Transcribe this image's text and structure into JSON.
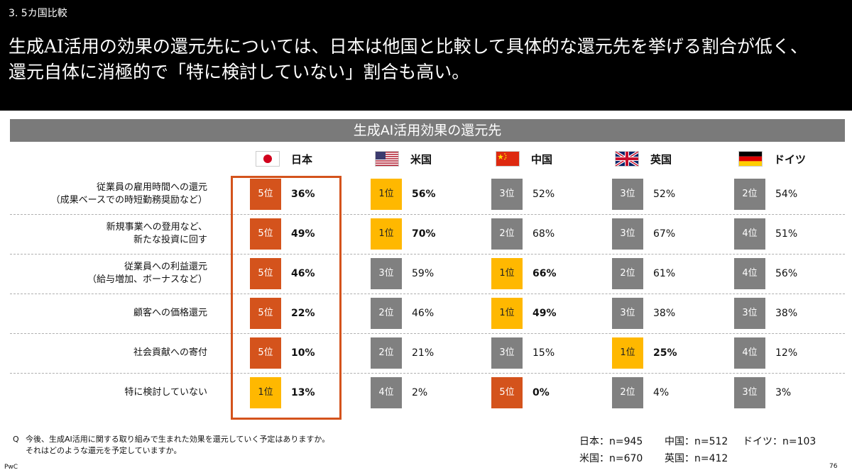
{
  "header": {
    "section": "3. 5カ国比較",
    "headline_line1": "生成AI活用の効果の還元先については、日本は他国と比較して具体的な還元先を挙げる割合が低く、",
    "headline_line2": "還元自体に消極的で「特に検討していない」割合も高い。"
  },
  "chart_data": {
    "type": "table",
    "title": "生成AI活用効果の還元先",
    "countries": [
      {
        "name": "日本",
        "flag": "japan-flag-icon"
      },
      {
        "name": "米国",
        "flag": "usa-flag-icon"
      },
      {
        "name": "中国",
        "flag": "china-flag-icon"
      },
      {
        "name": "英国",
        "flag": "uk-flag-icon"
      },
      {
        "name": "ドイツ",
        "flag": "germany-flag-icon"
      }
    ],
    "categories": [
      [
        "従業員の雇用時間への還元",
        "（成果ベースでの時短勤務奨励など）"
      ],
      [
        "新規事業への登用など、",
        "新たな投資に回す"
      ],
      [
        "従業員への利益還元",
        "（給与増加、ボーナスなど）"
      ],
      [
        "顧客への価格還元"
      ],
      [
        "社会貢献への寄付"
      ],
      [
        "特に検討していない"
      ]
    ],
    "series": [
      {
        "name": "日本",
        "ranks": [
          "5位",
          "5位",
          "5位",
          "5位",
          "5位",
          "1位"
        ],
        "values": [
          36,
          49,
          46,
          22,
          10,
          13
        ]
      },
      {
        "name": "米国",
        "ranks": [
          "1位",
          "1位",
          "3位",
          "2位",
          "2位",
          "4位"
        ],
        "values": [
          56,
          70,
          59,
          46,
          21,
          2
        ]
      },
      {
        "name": "中国",
        "ranks": [
          "3位",
          "2位",
          "1位",
          "1位",
          "3位",
          "5位"
        ],
        "values": [
          52,
          68,
          66,
          49,
          15,
          0
        ]
      },
      {
        "name": "英国",
        "ranks": [
          "3位",
          "3位",
          "2位",
          "3位",
          "1位",
          "2位"
        ],
        "values": [
          52,
          67,
          61,
          38,
          25,
          4
        ]
      },
      {
        "name": "ドイツ",
        "ranks": [
          "2位",
          "4位",
          "4位",
          "3位",
          "4位",
          "3位"
        ],
        "values": [
          54,
          51,
          56,
          38,
          12,
          3
        ]
      }
    ],
    "unit": "%",
    "colors": {
      "rank1": "#ffb800",
      "rank5": "#d4531c",
      "other": "#808080",
      "highlight_border": "#d4531c"
    }
  },
  "footer": {
    "q_mark": "Q",
    "question_line1": "今後、生成AI活用に関する取り組みで生まれた効果を還元していく予定はありますか。",
    "question_line2": "それはどのような還元を予定していますか。",
    "samples": [
      {
        "label": "日本：n=945"
      },
      {
        "label": "中国：n=512"
      },
      {
        "label": "ドイツ：n=103"
      },
      {
        "label": "米国：n=670"
      },
      {
        "label": "英国：n=412"
      }
    ],
    "brand": "PwC",
    "page": "76"
  }
}
